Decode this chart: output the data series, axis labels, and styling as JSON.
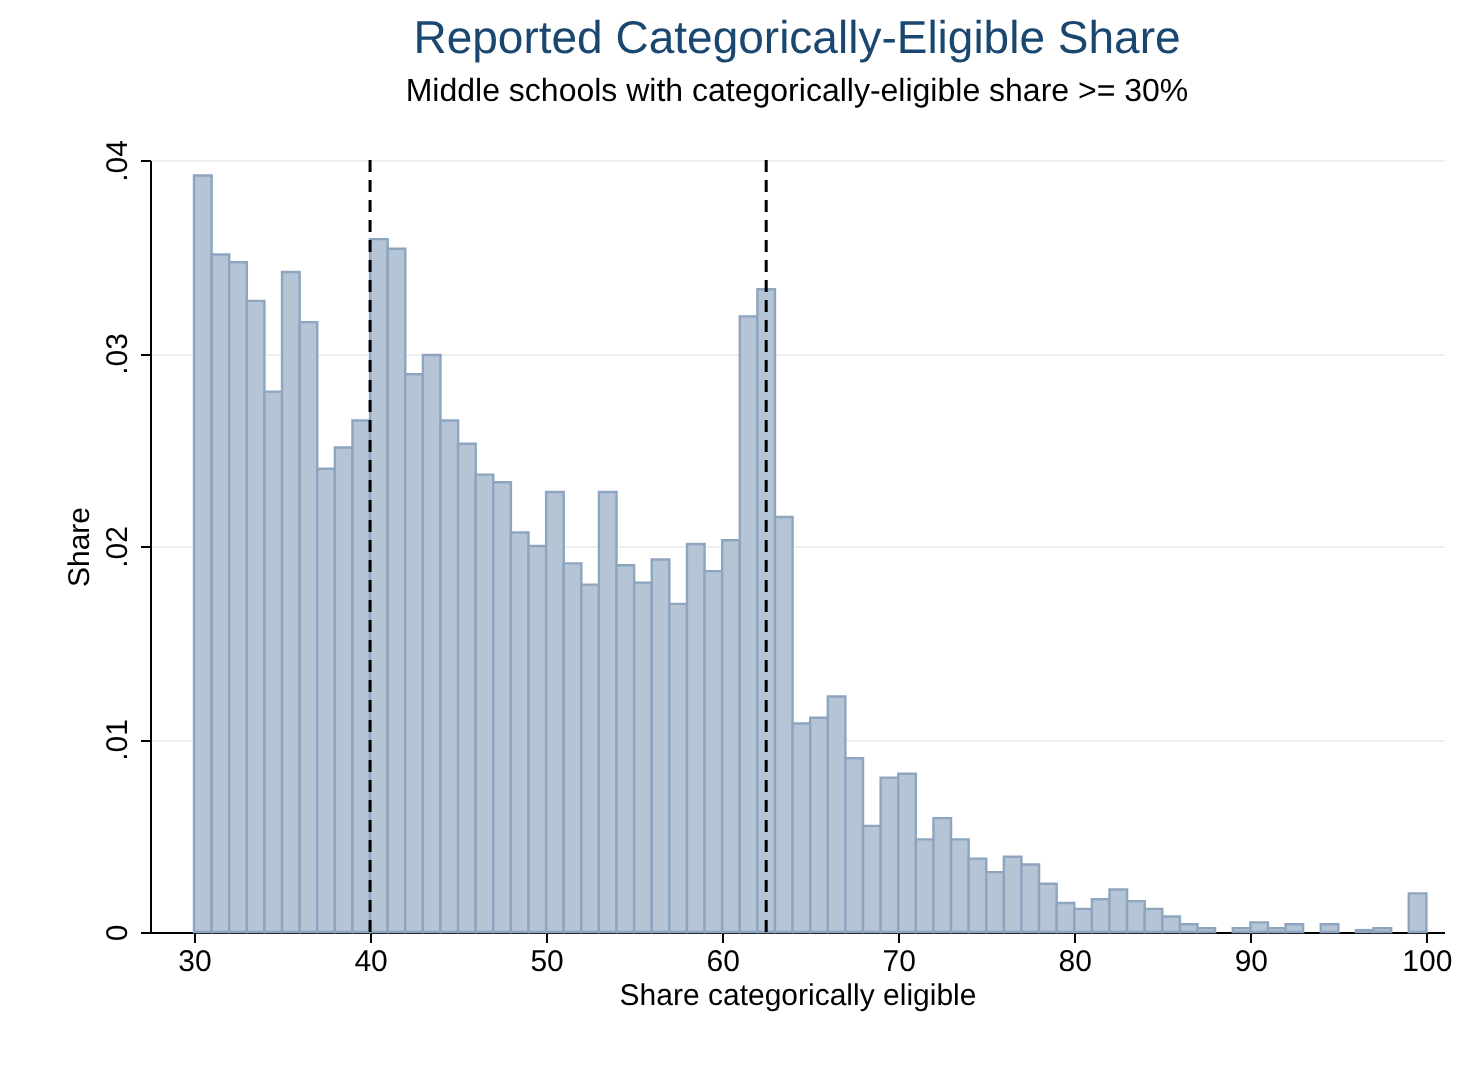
{
  "chart_data": {
    "type": "histogram",
    "title": "Reported Categorically-Eligible Share",
    "subtitle": "Middle schools with categorically-eligible share >= 30%",
    "xlabel": "Share categorically eligible",
    "ylabel": "Share",
    "color": "#b5c5d6",
    "bins": [
      30,
      31,
      32,
      33,
      34,
      35,
      36,
      37,
      38,
      39,
      40,
      41,
      42,
      43,
      44,
      45,
      46,
      47,
      48,
      49,
      50,
      51,
      52,
      53,
      54,
      55,
      56,
      57,
      58,
      59,
      60,
      61,
      62,
      63,
      64,
      65,
      66,
      67,
      68,
      69,
      70,
      71,
      72,
      73,
      74,
      75,
      76,
      77,
      78,
      79,
      80,
      81,
      82,
      83,
      84,
      85,
      86,
      87,
      88,
      89,
      90,
      91,
      92,
      93,
      94,
      95,
      96,
      97,
      98,
      99,
      100
    ],
    "values": [
      0.0392,
      0.0351,
      0.0347,
      0.0327,
      0.028,
      0.0342,
      0.0316,
      0.024,
      0.0251,
      0.0265,
      0.0359,
      0.0354,
      0.0289,
      0.0299,
      0.0265,
      0.0253,
      0.0237,
      0.0233,
      0.0207,
      0.02,
      0.0228,
      0.0191,
      0.018,
      0.0228,
      0.019,
      0.0181,
      0.0193,
      0.017,
      0.0201,
      0.0187,
      0.0203,
      0.0319,
      0.0333,
      0.0215,
      0.0108,
      0.0111,
      0.0122,
      0.009,
      0.0055,
      0.008,
      0.0082,
      0.0048,
      0.0059,
      0.0048,
      0.0038,
      0.0031,
      0.0039,
      0.0035,
      0.0025,
      0.0015,
      0.0012,
      0.0017,
      0.0022,
      0.0016,
      0.0012,
      0.0008,
      0.0004,
      0.0002,
      0,
      0.0002,
      0.0005,
      0.0002,
      0.0004,
      0,
      0.0004,
      0,
      0.0001,
      0.0002,
      0,
      0.002
    ],
    "xlim": [
      27.5,
      101
    ],
    "xticks": [
      30,
      40,
      50,
      60,
      70,
      80,
      90,
      100
    ],
    "ylim": [
      0,
      0.04
    ],
    "yticks": [
      0,
      {
        "value": 0.01,
        "label": ".01"
      },
      {
        "value": 0.02,
        "label": ".02"
      },
      {
        "value": 0.03,
        "label": ".03"
      },
      {
        "value": 0.04,
        "label": ".04"
      }
    ],
    "grid": "y",
    "ref_lines": [
      {
        "axis": "x",
        "value": 40,
        "line_style": "dashed"
      },
      {
        "axis": "x",
        "value": 62.5,
        "line_style": "dashed"
      }
    ]
  }
}
